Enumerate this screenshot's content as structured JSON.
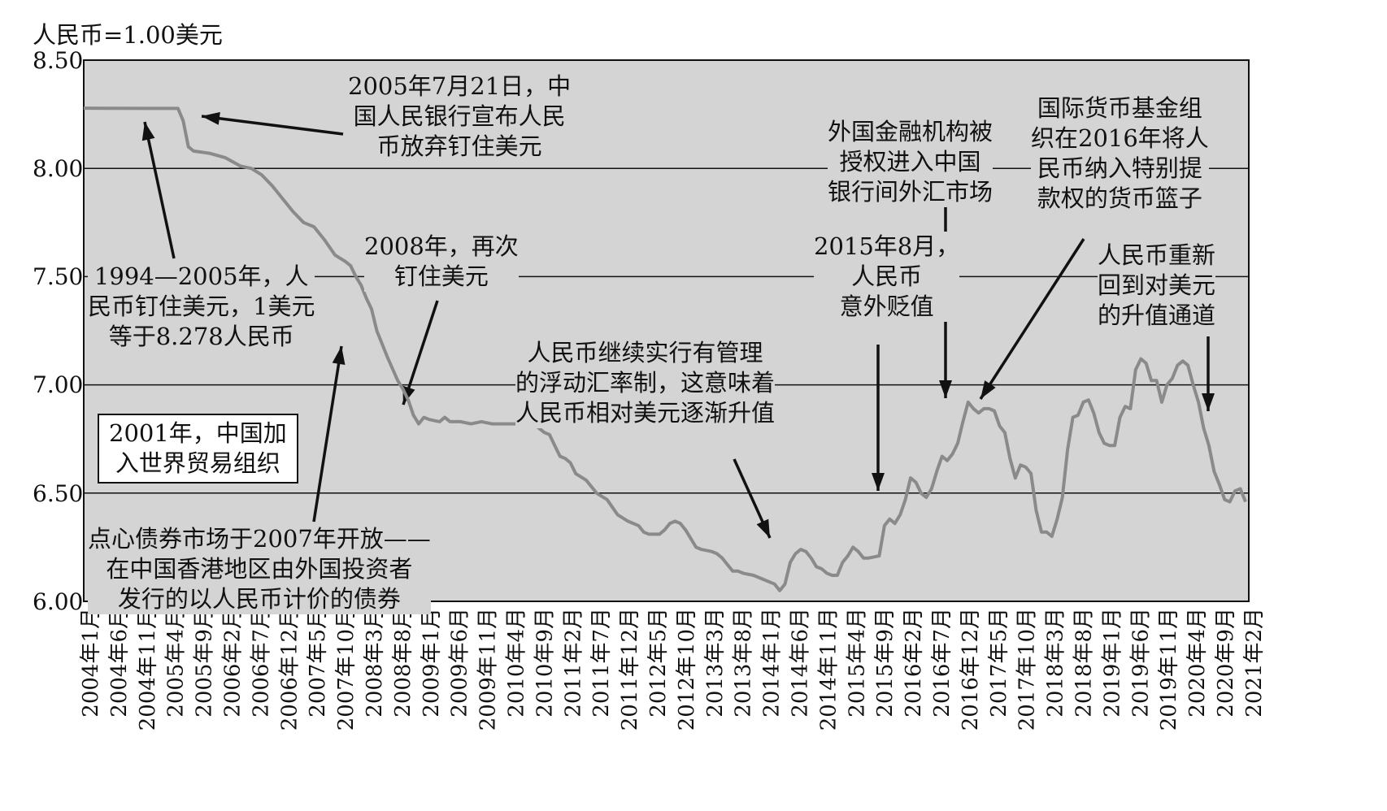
{
  "chart_data": {
    "type": "line",
    "ylabel": "人民币=1.00美元",
    "ylim": [
      6.0,
      8.5
    ],
    "yticks": [
      "8.50",
      "8.00",
      "7.50",
      "7.00",
      "6.50",
      "6.00"
    ],
    "grid": "horizontal lines at 6.50, 7.00, 7.50, 8.00",
    "xticks": [
      "2004年1月",
      "2004年6月",
      "2004年11月",
      "2005年4月",
      "2005年9月",
      "2006年2月",
      "2006年7月",
      "2006年12月",
      "2007年5月",
      "2007年10月",
      "2008年3月",
      "2008年8月",
      "2009年1月",
      "2009年6月",
      "2009年11月",
      "2010年4月",
      "2010年9月",
      "2011年2月",
      "2011年7月",
      "2011年12月",
      "2012年5月",
      "2012年10月",
      "2013年3月",
      "2013年8月",
      "2014年1月",
      "2014年6月",
      "2014年11月",
      "2015年4月",
      "2015年9月",
      "2016年2月",
      "2016年7月",
      "2016年12月",
      "2017年5月",
      "2017年10月",
      "2018年3月",
      "2018年8月",
      "2019年1月",
      "2019年6月",
      "2019年11月",
      "2020年4月",
      "2020年9月",
      "2021年2月"
    ],
    "series": [
      {
        "values": [
          [
            0,
            8.278
          ],
          [
            12,
            8.277
          ],
          [
            18,
            8.277
          ],
          [
            19,
            8.22
          ],
          [
            20,
            8.1
          ],
          [
            21,
            8.08
          ],
          [
            24,
            8.07
          ],
          [
            27,
            8.05
          ],
          [
            30,
            8.01
          ],
          [
            32,
            8.0
          ],
          [
            34,
            7.97
          ],
          [
            36,
            7.92
          ],
          [
            38,
            7.86
          ],
          [
            40,
            7.8
          ],
          [
            42,
            7.75
          ],
          [
            44,
            7.73
          ],
          [
            46,
            7.67
          ],
          [
            48,
            7.6
          ],
          [
            50,
            7.57
          ],
          [
            51,
            7.55
          ],
          [
            52,
            7.5
          ],
          [
            53,
            7.46
          ],
          [
            54,
            7.4
          ],
          [
            55,
            7.35
          ],
          [
            56,
            7.25
          ],
          [
            58,
            7.13
          ],
          [
            60,
            7.02
          ],
          [
            61,
            6.98
          ],
          [
            62,
            6.93
          ],
          [
            63,
            6.86
          ],
          [
            64,
            6.82
          ],
          [
            65,
            6.85
          ],
          [
            66,
            6.84
          ],
          [
            68,
            6.83
          ],
          [
            69,
            6.85
          ],
          [
            70,
            6.83
          ],
          [
            72,
            6.83
          ],
          [
            74,
            6.82
          ],
          [
            76,
            6.83
          ],
          [
            78,
            6.82
          ],
          [
            84,
            6.82
          ],
          [
            86,
            6.82
          ],
          [
            87,
            6.8
          ],
          [
            88,
            6.78
          ],
          [
            89,
            6.77
          ],
          [
            90,
            6.72
          ],
          [
            91,
            6.67
          ],
          [
            92,
            6.66
          ],
          [
            93,
            6.64
          ],
          [
            94,
            6.59
          ],
          [
            96,
            6.56
          ],
          [
            98,
            6.5
          ],
          [
            100,
            6.47
          ],
          [
            102,
            6.4
          ],
          [
            104,
            6.37
          ],
          [
            106,
            6.35
          ],
          [
            107,
            6.32
          ],
          [
            108,
            6.31
          ],
          [
            110,
            6.31
          ],
          [
            111,
            6.33
          ],
          [
            112,
            6.36
          ],
          [
            113,
            6.37
          ],
          [
            114,
            6.36
          ],
          [
            115,
            6.33
          ],
          [
            116,
            6.29
          ],
          [
            117,
            6.25
          ],
          [
            118,
            6.24
          ],
          [
            120,
            6.23
          ],
          [
            121,
            6.22
          ],
          [
            122,
            6.2
          ],
          [
            123,
            6.17
          ],
          [
            124,
            6.14
          ],
          [
            125,
            6.14
          ],
          [
            126,
            6.13
          ],
          [
            128,
            6.12
          ],
          [
            130,
            6.1
          ],
          [
            132,
            6.08
          ],
          [
            133,
            6.05
          ],
          [
            134,
            6.08
          ],
          [
            135,
            6.18
          ],
          [
            136,
            6.22
          ],
          [
            137,
            6.24
          ],
          [
            138,
            6.23
          ],
          [
            139,
            6.2
          ],
          [
            140,
            6.16
          ],
          [
            141,
            6.15
          ],
          [
            142,
            6.13
          ],
          [
            143,
            6.12
          ],
          [
            144,
            6.12
          ],
          [
            145,
            6.18
          ],
          [
            146,
            6.21
          ],
          [
            147,
            6.25
          ],
          [
            148,
            6.23
          ],
          [
            149,
            6.2
          ],
          [
            150,
            6.2
          ],
          [
            152,
            6.21
          ],
          [
            153,
            6.35
          ],
          [
            154,
            6.38
          ],
          [
            155,
            6.36
          ],
          [
            156,
            6.4
          ],
          [
            157,
            6.47
          ],
          [
            158,
            6.57
          ],
          [
            159,
            6.55
          ],
          [
            160,
            6.5
          ],
          [
            161,
            6.48
          ],
          [
            162,
            6.52
          ],
          [
            163,
            6.6
          ],
          [
            164,
            6.67
          ],
          [
            165,
            6.65
          ],
          [
            166,
            6.68
          ],
          [
            167,
            6.73
          ],
          [
            168,
            6.83
          ],
          [
            169,
            6.92
          ],
          [
            170,
            6.89
          ],
          [
            171,
            6.87
          ],
          [
            172,
            6.89
          ],
          [
            173,
            6.89
          ],
          [
            174,
            6.88
          ],
          [
            175,
            6.81
          ],
          [
            176,
            6.78
          ],
          [
            177,
            6.66
          ],
          [
            178,
            6.57
          ],
          [
            179,
            6.63
          ],
          [
            180,
            6.62
          ],
          [
            181,
            6.59
          ],
          [
            182,
            6.42
          ],
          [
            183,
            6.32
          ],
          [
            184,
            6.32
          ],
          [
            185,
            6.3
          ],
          [
            186,
            6.38
          ],
          [
            187,
            6.48
          ],
          [
            188,
            6.7
          ],
          [
            189,
            6.85
          ],
          [
            190,
            6.86
          ],
          [
            191,
            6.92
          ],
          [
            192,
            6.93
          ],
          [
            193,
            6.87
          ],
          [
            194,
            6.78
          ],
          [
            195,
            6.73
          ],
          [
            196,
            6.72
          ],
          [
            197,
            6.72
          ],
          [
            198,
            6.85
          ],
          [
            199,
            6.9
          ],
          [
            200,
            6.89
          ],
          [
            201,
            7.07
          ],
          [
            202,
            7.12
          ],
          [
            203,
            7.1
          ],
          [
            204,
            7.02
          ],
          [
            205,
            7.02
          ],
          [
            206,
            6.92
          ],
          [
            207,
            7.0
          ],
          [
            208,
            7.03
          ],
          [
            209,
            7.09
          ],
          [
            210,
            7.11
          ],
          [
            211,
            7.09
          ],
          [
            212,
            7.0
          ],
          [
            213,
            6.92
          ],
          [
            214,
            6.8
          ],
          [
            215,
            6.72
          ],
          [
            216,
            6.6
          ],
          [
            217,
            6.54
          ],
          [
            218,
            6.47
          ],
          [
            219,
            6.46
          ],
          [
            220,
            6.51
          ],
          [
            221,
            6.52
          ],
          [
            222,
            6.46
          ]
        ]
      }
    ],
    "annotations": {
      "a2005": "2005年7月21日，中\n国人民银行宣布人民\n币放弃钉住美元",
      "a1994": "1994—2005年，人\n民币钉住美元，1美元\n等于8.278人民币",
      "a2008": "2008年，再次\n钉住美元",
      "awto": "2001年，中国加\n入世界贸易组织",
      "adimsum": "点心债券市场于2007年开放——\n在中国香港地区由外国投资者\n发行的以人民币计价的债券",
      "amanaged": "人民币继续实行有管理\n的浮动汇率制，这意味着\n人民币相对美元逐渐升值",
      "a2015": "2015年8月，\n人民币\n意外贬值",
      "aforeign": "外国金融机构被\n授权进入中国\n银行间外汇市场",
      "aimf": "国际货币基金组\n织在2016年将人\n民币纳入特别提\n款权的货币篮子",
      "areturn": "人民币重新\n回到对美元\n的升值通道"
    }
  }
}
